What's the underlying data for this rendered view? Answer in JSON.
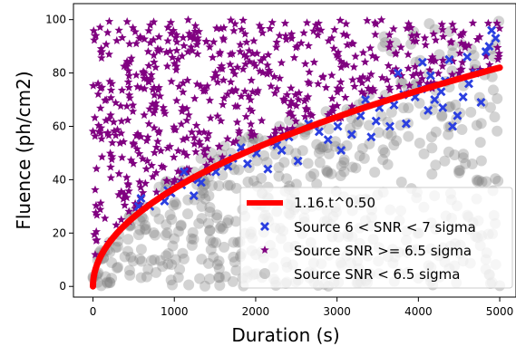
{
  "chart_data": {
    "type": "scatter",
    "xlabel": "Duration (s)",
    "ylabel": "Fluence (ph/cm2)",
    "xlim": [
      -240,
      5200
    ],
    "ylim": [
      -4,
      106
    ],
    "x_ticks": [
      0,
      1000,
      2000,
      3000,
      4000,
      5000
    ],
    "y_ticks": [
      0,
      20,
      40,
      60,
      80,
      100
    ],
    "legend_position": "lower-right",
    "fit_curve": {
      "name": "1.16.t^0.50",
      "coefficient": 1.16,
      "exponent": 0.5,
      "x_range": [
        0,
        5000
      ],
      "color": "#ff0000"
    },
    "series": [
      {
        "name": "Source 6 < SNR < 7 sigma",
        "marker": "x",
        "color": "#2b3fe0",
        "points": [
          [
            560,
            30
          ],
          [
            590,
            33
          ],
          [
            700,
            30
          ],
          [
            880,
            32
          ],
          [
            920,
            36
          ],
          [
            960,
            35
          ],
          [
            1090,
            38
          ],
          [
            1120,
            43
          ],
          [
            1240,
            34
          ],
          [
            1330,
            39
          ],
          [
            1510,
            43
          ],
          [
            1600,
            46
          ],
          [
            1720,
            48
          ],
          [
            1820,
            52
          ],
          [
            1900,
            46
          ],
          [
            2010,
            50
          ],
          [
            2150,
            44
          ],
          [
            2260,
            53
          ],
          [
            2410,
            56
          ],
          [
            2520,
            47
          ],
          [
            2650,
            61
          ],
          [
            2780,
            58
          ],
          [
            2890,
            55
          ],
          [
            3010,
            60
          ],
          [
            3050,
            51
          ],
          [
            3180,
            57
          ],
          [
            3290,
            64
          ],
          [
            3350,
            70
          ],
          [
            3420,
            56
          ],
          [
            3520,
            67
          ],
          [
            3650,
            60
          ],
          [
            3700,
            68
          ],
          [
            3820,
            72
          ],
          [
            3850,
            61
          ],
          [
            3960,
            71
          ],
          [
            4040,
            74
          ],
          [
            4120,
            66
          ],
          [
            4200,
            70
          ],
          [
            4280,
            73
          ],
          [
            4330,
            77
          ],
          [
            4420,
            60
          ],
          [
            4480,
            64
          ],
          [
            4550,
            71
          ],
          [
            4620,
            76
          ],
          [
            4700,
            80
          ],
          [
            4770,
            69
          ],
          [
            4830,
            88
          ],
          [
            4870,
            90
          ],
          [
            4900,
            96
          ],
          [
            4950,
            93
          ],
          [
            3480,
            62
          ],
          [
            2320,
            51
          ],
          [
            1660,
            45
          ],
          [
            1290,
            40
          ],
          [
            4050,
            84
          ],
          [
            4380,
            85
          ],
          [
            3750,
            80
          ],
          [
            4600,
            86
          ],
          [
            4150,
            79
          ],
          [
            4300,
            67
          ]
        ]
      },
      {
        "name": "Source SNR >= 6.5 sigma",
        "marker": "star",
        "color": "#800080",
        "points": []
      },
      {
        "name": "Source SNR < 6.5 sigma",
        "marker": "circle",
        "color": "#808080",
        "points": []
      }
    ]
  }
}
